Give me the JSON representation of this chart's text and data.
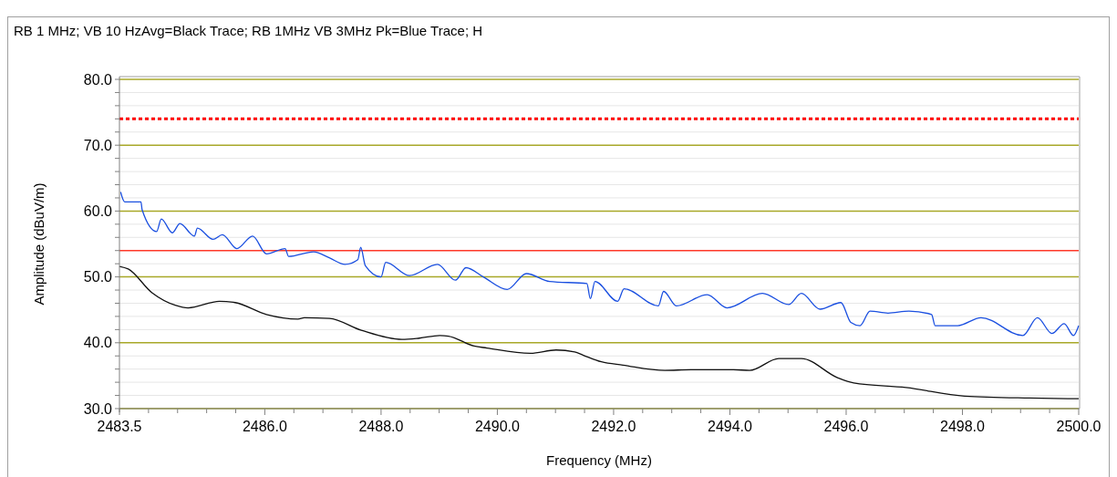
{
  "chart_data": {
    "type": "line",
    "title": "RB 1 MHz; VB 10 HzAvg=Black Trace; RB 1MHz VB 3MHz  Pk=Blue Trace; H",
    "xlabel": "Frequency (MHz)",
    "ylabel": "Amplitude (dBuV/m)",
    "xlim": [
      2483.5,
      2500
    ],
    "ylim": [
      30,
      80
    ],
    "xticks": [
      {
        "value": 2483.5,
        "label": "2483.5"
      },
      {
        "value": 2484,
        "label": null
      },
      {
        "value": 2484.5,
        "label": null
      },
      {
        "value": 2485,
        "label": null
      },
      {
        "value": 2485.5,
        "label": null
      },
      {
        "value": 2486,
        "label": "2486.0"
      },
      {
        "value": 2486.5,
        "label": null
      },
      {
        "value": 2487,
        "label": null
      },
      {
        "value": 2487.5,
        "label": null
      },
      {
        "value": 2488,
        "label": "2488.0"
      },
      {
        "value": 2488.5,
        "label": null
      },
      {
        "value": 2489,
        "label": null
      },
      {
        "value": 2489.5,
        "label": null
      },
      {
        "value": 2490,
        "label": "2490.0"
      },
      {
        "value": 2490.5,
        "label": null
      },
      {
        "value": 2491,
        "label": null
      },
      {
        "value": 2491.5,
        "label": null
      },
      {
        "value": 2492,
        "label": "2492.0"
      },
      {
        "value": 2492.5,
        "label": null
      },
      {
        "value": 2493,
        "label": null
      },
      {
        "value": 2493.5,
        "label": null
      },
      {
        "value": 2494,
        "label": "2494.0"
      },
      {
        "value": 2494.5,
        "label": null
      },
      {
        "value": 2495,
        "label": null
      },
      {
        "value": 2495.5,
        "label": null
      },
      {
        "value": 2496,
        "label": "2496.0"
      },
      {
        "value": 2496.5,
        "label": null
      },
      {
        "value": 2497,
        "label": null
      },
      {
        "value": 2497.5,
        "label": null
      },
      {
        "value": 2498,
        "label": "2498.0"
      },
      {
        "value": 2498.5,
        "label": null
      },
      {
        "value": 2499,
        "label": null
      },
      {
        "value": 2499.5,
        "label": null
      },
      {
        "value": 2500,
        "label": "2500.0"
      }
    ],
    "yticks": [
      {
        "value": 30,
        "label": "30.0"
      },
      {
        "value": 32,
        "label": null
      },
      {
        "value": 34,
        "label": null
      },
      {
        "value": 36,
        "label": null
      },
      {
        "value": 38,
        "label": null
      },
      {
        "value": 40,
        "label": "40.0"
      },
      {
        "value": 42,
        "label": null
      },
      {
        "value": 44,
        "label": null
      },
      {
        "value": 46,
        "label": null
      },
      {
        "value": 48,
        "label": null
      },
      {
        "value": 50,
        "label": "50.0"
      },
      {
        "value": 52,
        "label": null
      },
      {
        "value": 54,
        "label": null
      },
      {
        "value": 56,
        "label": null
      },
      {
        "value": 58,
        "label": null
      },
      {
        "value": 60,
        "label": "60.0"
      },
      {
        "value": 62,
        "label": null
      },
      {
        "value": 64,
        "label": null
      },
      {
        "value": 66,
        "label": null
      },
      {
        "value": 68,
        "label": null
      },
      {
        "value": 70,
        "label": "70.0"
      },
      {
        "value": 72,
        "label": null
      },
      {
        "value": 74,
        "label": null
      },
      {
        "value": 76,
        "label": null
      },
      {
        "value": 78,
        "label": null
      },
      {
        "value": 80,
        "label": "80.0"
      }
    ],
    "grid": "y",
    "marker": "none",
    "ref_lines": [
      {
        "axis": "y",
        "value": 74,
        "color": "#ff0000",
        "line_style": "dotted"
      },
      {
        "axis": "y",
        "value": 54,
        "color": "#ff3a2a",
        "line_style": "solid"
      }
    ],
    "series": [
      {
        "color": "#1a4fe0",
        "x": [
          2483.52,
          2483.59,
          2483.87,
          2483.89,
          2484.14,
          2484.22,
          2484.41,
          2484.54,
          2484.79,
          2484.84,
          2485.11,
          2485.27,
          2485.52,
          2485.79,
          2486.03,
          2486.35,
          2486.41,
          2486.84,
          2487.11,
          2487.38,
          2487.6,
          2487.65,
          2487.73,
          2488,
          2488.08,
          2488.49,
          2488.97,
          2489.28,
          2489.46,
          2489.76,
          2490.17,
          2490.5,
          2490.9,
          2491.54,
          2491.6,
          2491.68,
          2492.07,
          2492.18,
          2492.77,
          2492.86,
          2493.08,
          2493.61,
          2493.95,
          2494.56,
          2495.01,
          2495.23,
          2495.55,
          2495.91,
          2496.08,
          2496.24,
          2496.41,
          2496.72,
          2497.08,
          2497.47,
          2497.53,
          2497.92,
          2498.32,
          2499.04,
          2499.29,
          2499.54,
          2499.75,
          2499.91,
          2500
        ],
        "values": [
          62.9,
          61.4,
          61.4,
          60.2,
          56.9,
          58.8,
          56.7,
          58.1,
          56.2,
          57.4,
          55.7,
          56.4,
          54.3,
          56.2,
          53.5,
          54.3,
          53.1,
          53.8,
          52.9,
          51.9,
          52.6,
          54.5,
          51.7,
          50,
          52.2,
          50.2,
          51.9,
          49.5,
          51.4,
          50,
          48.1,
          50.5,
          49.3,
          49,
          46.7,
          49.3,
          46.3,
          48.2,
          45.6,
          47.8,
          45.6,
          47.3,
          45.3,
          47.5,
          45.8,
          47.5,
          45.1,
          46.1,
          43.1,
          42.6,
          44.8,
          44.5,
          44.8,
          44.3,
          42.6,
          42.6,
          43.8,
          41.1,
          43.8,
          41.4,
          42.9,
          41.1,
          42.6
        ]
      },
      {
        "color": "#111111",
        "x": [
          2483.5,
          2483.65,
          2484.06,
          2484.46,
          2484.68,
          2485.22,
          2485.49,
          2486.03,
          2486.57,
          2486.68,
          2487.11,
          2487.66,
          2488.36,
          2488.66,
          2489.01,
          2489.16,
          2489.6,
          2489.82,
          2490.57,
          2491.01,
          2491.33,
          2491.48,
          2491.79,
          2492.16,
          2492.88,
          2493.33,
          2494.06,
          2494.34,
          2494.84,
          2495.23,
          2495.85,
          2496.13,
          2497.03,
          2498.04,
          2499.15,
          2500
        ],
        "values": [
          51.6,
          51.2,
          47.6,
          45.7,
          45.3,
          46.3,
          46.1,
          44.3,
          43.6,
          43.8,
          43.7,
          41.9,
          40.5,
          40.7,
          41.1,
          41,
          39.5,
          39.2,
          38.4,
          38.9,
          38.6,
          38.1,
          37.1,
          36.6,
          35.8,
          35.9,
          35.9,
          35.8,
          37.6,
          37.6,
          34.7,
          33.9,
          33.2,
          31.9,
          31.6,
          31.5
        ]
      }
    ]
  }
}
